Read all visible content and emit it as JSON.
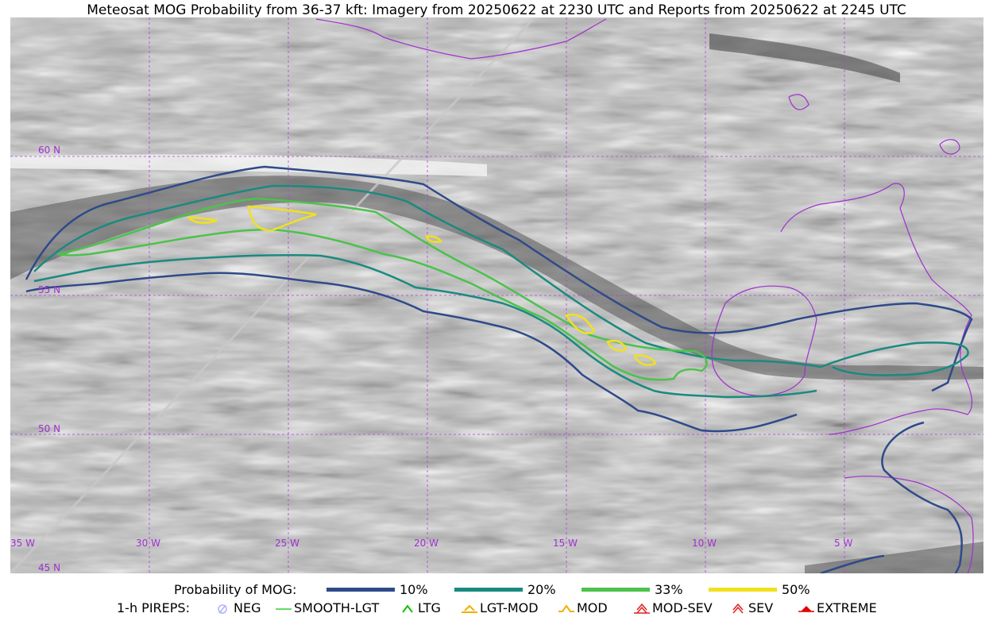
{
  "title": "Meteosat MOG Probability from 36-37 kft: Imagery from 20250622 at 2230 UTC and Reports from 20250622 at 2245 UTC",
  "map": {
    "lat_labels": [
      "60 N",
      "55 N",
      "50 N",
      "45 N"
    ],
    "lon_labels": [
      "35 W",
      "30 W",
      "25 W",
      "20 W",
      "15 W",
      "10 W",
      "5 W"
    ],
    "colors": {
      "grid": "#b040e0",
      "coast": "#a030d0",
      "p10": "#2e4a8a",
      "p20": "#1a8a80",
      "p33": "#4cc24c",
      "p50": "#f2e020"
    }
  },
  "legend": {
    "prob_title": "Probability of MOG:",
    "prob_items": [
      {
        "label": "10%",
        "color": "#2e4a8a"
      },
      {
        "label": "20%",
        "color": "#1a8a80"
      },
      {
        "label": "33%",
        "color": "#4cc24c"
      },
      {
        "label": "50%",
        "color": "#f2e020"
      }
    ],
    "pirep_title": "1-h PIREPS:",
    "pirep_items": [
      {
        "label": "NEG",
        "icon": "neg-circle-icon",
        "color": "#b0b0ff"
      },
      {
        "label": "SMOOTH-LGT",
        "icon": "line-icon",
        "color": "#30d030"
      },
      {
        "label": "LTG",
        "icon": "caret-icon",
        "color": "#10c010"
      },
      {
        "label": "LGT-MOD",
        "icon": "caret-bar-icon",
        "color": "#f0b000"
      },
      {
        "label": "MOD",
        "icon": "caret-icon",
        "color": "#f0b000"
      },
      {
        "label": "MOD-SEV",
        "icon": "double-caret-bar-icon",
        "color": "#e02020"
      },
      {
        "label": "SEV",
        "icon": "double-caret-icon",
        "color": "#e02020"
      },
      {
        "label": "EXTREME",
        "icon": "filled-caret-icon",
        "color": "#e00000"
      }
    ]
  }
}
